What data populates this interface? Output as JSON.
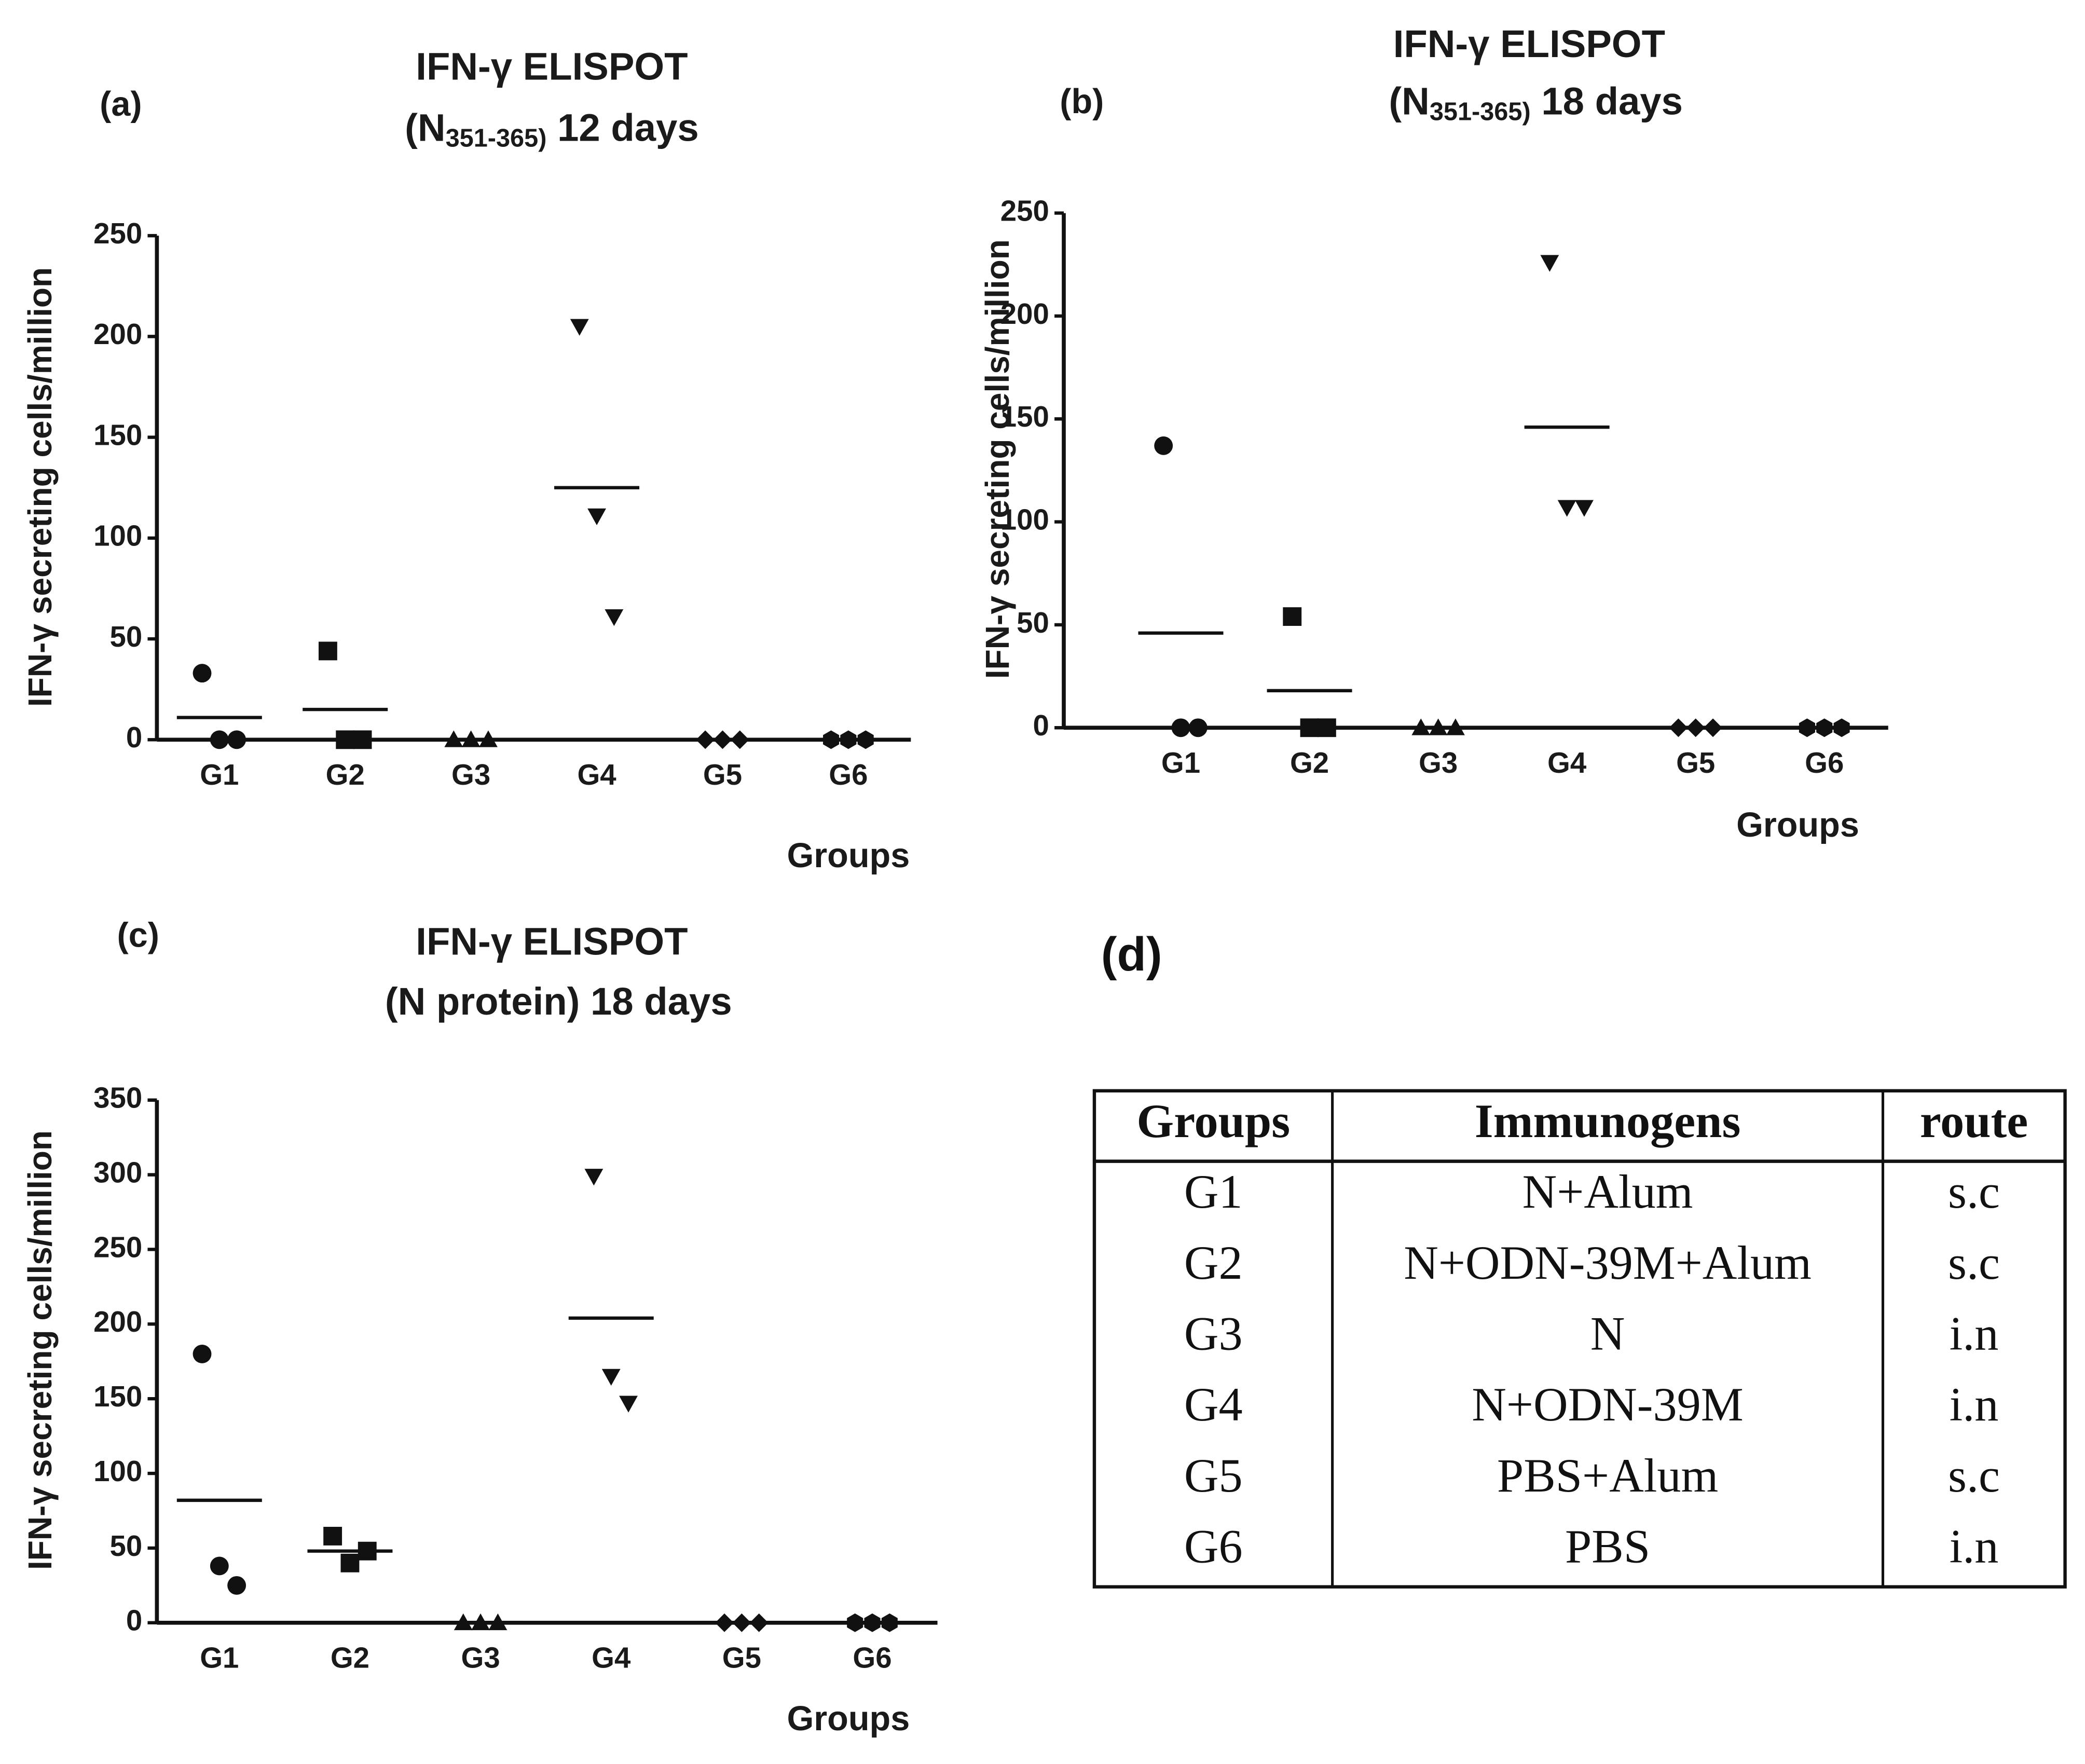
{
  "chart_data": [
    {
      "type": "dot",
      "panel": "(a)",
      "title": "IFN-γ ELISPOT",
      "subtitle": [
        "(N",
        "351-365)",
        " 12 days"
      ],
      "y_label": "IFN-γ secreting cells/million",
      "x_label": "Groups",
      "categories": [
        "G1",
        "G2",
        "G3",
        "G4",
        "G5",
        "G6"
      ],
      "markers": [
        "circle",
        "square",
        "triangle-up",
        "triangle-down",
        "diamond",
        "hexagon"
      ],
      "values": [
        [
          33,
          0,
          0
        ],
        [
          44,
          0,
          0
        ],
        [
          0,
          0,
          0
        ],
        [
          205,
          111,
          61
        ],
        [
          0,
          0,
          0
        ],
        [
          0,
          0,
          0
        ]
      ],
      "means": [
        11,
        15,
        0,
        125,
        0,
        0
      ],
      "ylim": [
        0,
        250
      ],
      "yticks": [
        0,
        50,
        100,
        150,
        200,
        250
      ]
    },
    {
      "type": "dot",
      "panel": "(b)",
      "title": "IFN-γ ELISPOT",
      "subtitle": [
        "(N",
        "351-365)",
        " 18 days"
      ],
      "y_label": "IFN-γ secreting cells/million",
      "x_label": "Groups",
      "categories": [
        "G1",
        "G2",
        "G3",
        "G4",
        "G5",
        "G6"
      ],
      "markers": [
        "circle",
        "square",
        "triangle-up",
        "triangle-down",
        "diamond",
        "hexagon"
      ],
      "values": [
        [
          137,
          0,
          0
        ],
        [
          54,
          0,
          0
        ],
        [
          0,
          0,
          0
        ],
        [
          226,
          107,
          107
        ],
        [
          0,
          0,
          0
        ],
        [
          0,
          0,
          0
        ]
      ],
      "means": [
        46,
        18,
        0,
        146,
        0,
        0
      ],
      "ylim": [
        0,
        250
      ],
      "yticks": [
        0,
        50,
        100,
        150,
        200,
        250
      ]
    },
    {
      "type": "dot",
      "panel": "(c)",
      "title": "IFN-γ ELISPOT",
      "subtitle": [
        "(N protein) 18 days"
      ],
      "y_label": "IFN-γ secreting cells/million",
      "x_label": "Groups",
      "categories": [
        "G1",
        "G2",
        "G3",
        "G4",
        "G5",
        "G6"
      ],
      "markers": [
        "circle",
        "square",
        "triangle-up",
        "triangle-down",
        "diamond",
        "hexagon"
      ],
      "values": [
        [
          180,
          38,
          25
        ],
        [
          58,
          40,
          48
        ],
        [
          0,
          0,
          0
        ],
        [
          299,
          165,
          147
        ],
        [
          0,
          0,
          0
        ],
        [
          0,
          0,
          0
        ]
      ],
      "means": [
        82,
        48,
        0,
        204,
        0,
        0
      ],
      "ylim": [
        0,
        350
      ],
      "yticks": [
        0,
        50,
        100,
        150,
        200,
        250,
        300,
        350
      ]
    }
  ],
  "table": {
    "panel": "(d)",
    "header": [
      "Groups",
      "Immunogens",
      "route"
    ],
    "rows": [
      [
        "G1",
        "N+Alum",
        "s.c"
      ],
      [
        "G2",
        "N+ODN-39M+Alum",
        "s.c"
      ],
      [
        "G3",
        "N",
        "i.n"
      ],
      [
        "G4",
        "N+ODN-39M",
        "i.n"
      ],
      [
        "G5",
        "PBS+Alum",
        "s.c"
      ],
      [
        "G6",
        "PBS",
        "i.n"
      ]
    ]
  }
}
